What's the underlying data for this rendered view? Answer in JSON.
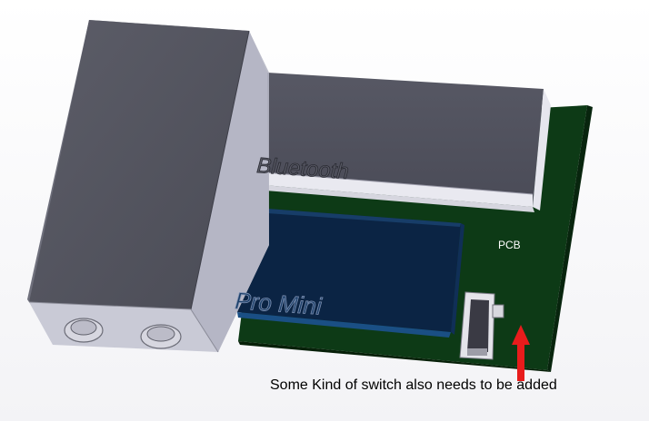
{
  "labels": {
    "bluetooth": "Bluetooth",
    "pro_mini": "Pro Mini",
    "pcb": "PCB",
    "note": "Some Kind of switch also needs to be added"
  },
  "colors": {
    "background": "#ffffff",
    "pcb_green": "#0d3a16",
    "battery_front": "#54555f",
    "battery_top": "#8c8d99",
    "battery_side": "#b7b8c6",
    "module_top": "#4e4f5b",
    "module_face": "#e6e6ee",
    "pro_mini_blue": "#0b2444",
    "arrow_red": "#e81c1c"
  },
  "icons": {
    "arrow": "up-arrow-icon",
    "switch": "slide-switch-icon"
  }
}
